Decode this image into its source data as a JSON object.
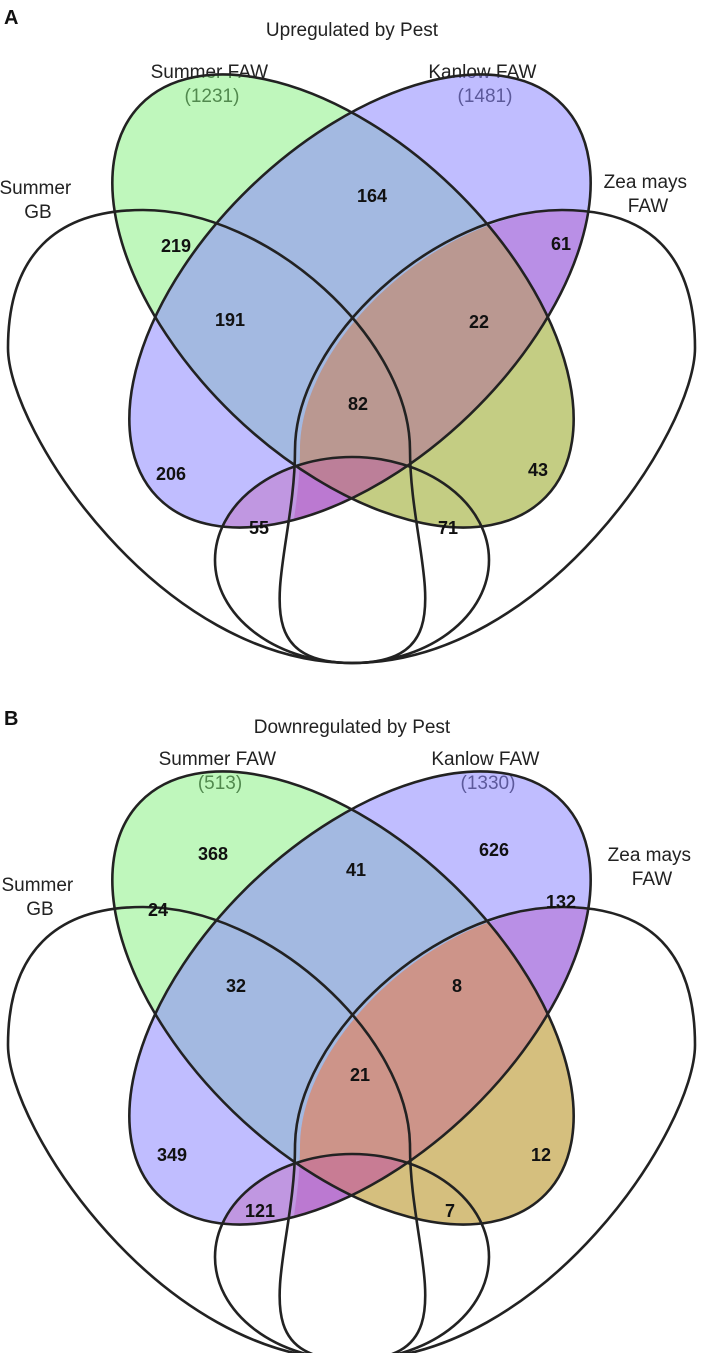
{
  "panels": [
    {
      "panel_label": "A",
      "title": "Upregulated by Pest",
      "sets": {
        "summer_gb": "Summer\nGB",
        "summer_faw": "Summer FAW\n(1231)",
        "kanlow_faw": "Kanlow FAW\n(1481)",
        "zea_mays_faw": "Zea mays\nFAW"
      },
      "counts": {
        "sf_only": "",
        "kf_only": "",
        "sf_kf": "164",
        "gb_sf": "219",
        "zm_kf": "61",
        "gb_sf_kf": "191",
        "sf_kf_zm": "22",
        "all_four": "82",
        "gb_kf": "206",
        "sf_zm": "43",
        "gb_kf_zm": "55",
        "gb_sf_zm": "71"
      },
      "colors": {
        "summer_faw": "#7ff07a",
        "kanlow_faw": "#8c86ff",
        "zea_mays_faw": "#b36ad1",
        "summer_gb": "#ffffff",
        "yellow_overlap": "#c9c24a"
      }
    },
    {
      "panel_label": "B",
      "title": "Downregulated by Pest",
      "sets": {
        "summer_gb": "Summer\nGB",
        "summer_faw": "Summer FAW\n(513)",
        "kanlow_faw": "Kanlow FAW\n(1330)",
        "zea_mays_faw": "Zea mays\nFAW"
      },
      "counts": {
        "sf_only": "368",
        "kf_only": "626",
        "sf_kf": "41",
        "gb_sf": "24",
        "zm_kf": "132",
        "gb_sf_kf": "32",
        "sf_kf_zm": "8",
        "all_four": "21",
        "gb_kf": "349",
        "sf_zm": "12",
        "gb_kf_zm": "121",
        "gb_sf_zm": "7"
      },
      "colors": {
        "summer_faw": "#7ff07a",
        "kanlow_faw": "#8c86ff",
        "zea_mays_faw": "#b36ad1",
        "summer_gb": "#ffffff",
        "orange_overlap": "#e59a55"
      }
    }
  ]
}
